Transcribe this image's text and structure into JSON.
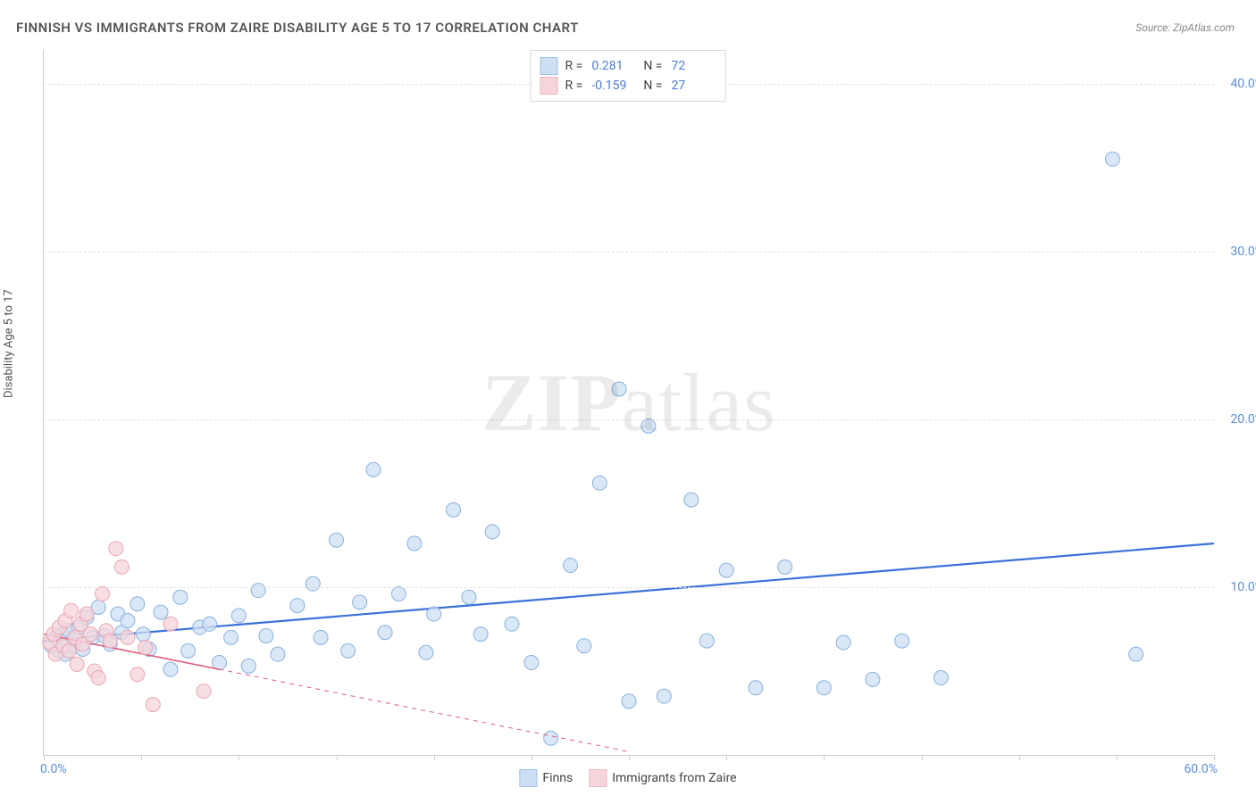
{
  "title": "FINNISH VS IMMIGRANTS FROM ZAIRE DISABILITY AGE 5 TO 17 CORRELATION CHART",
  "source": "Source: ZipAtlas.com",
  "y_axis_label": "Disability Age 5 to 17",
  "watermark_bold": "ZIP",
  "watermark_light": "atlas",
  "chart": {
    "type": "scatter",
    "background_color": "#ffffff",
    "grid_color": "#e0e0e0",
    "xlim": [
      0,
      60
    ],
    "ylim": [
      0,
      42
    ],
    "x_tick_labels": [
      "0.0%",
      "60.0%"
    ],
    "y_ticks": [
      10,
      20,
      30,
      40
    ],
    "y_tick_labels": [
      "10.0%",
      "20.0%",
      "30.0%",
      "40.0%"
    ],
    "x_minor_tick_step": 5,
    "marker_radius": 8,
    "series": [
      {
        "name": "Finns",
        "fill": "#cddff3",
        "stroke": "#8ab1de",
        "fill_opacity": 0.75,
        "trend": {
          "x1": 0,
          "y1": 6.8,
          "x2": 60,
          "y2": 12.6,
          "stroke": "#3a72d8",
          "width": 2.2,
          "solid_until_x": 60
        },
        "points": [
          [
            0.4,
            6.5
          ],
          [
            0.6,
            7.0
          ],
          [
            0.8,
            6.2
          ],
          [
            1.0,
            7.2
          ],
          [
            1.1,
            6.0
          ],
          [
            1.3,
            7.4
          ],
          [
            1.5,
            6.5
          ],
          [
            1.6,
            6.9
          ],
          [
            1.8,
            7.6
          ],
          [
            2.0,
            6.3
          ],
          [
            2.2,
            8.2
          ],
          [
            2.5,
            7.0
          ],
          [
            2.8,
            8.8
          ],
          [
            3.1,
            7.1
          ],
          [
            3.4,
            6.6
          ],
          [
            3.8,
            8.4
          ],
          [
            4.0,
            7.3
          ],
          [
            4.3,
            8.0
          ],
          [
            4.8,
            9.0
          ],
          [
            5.1,
            7.2
          ],
          [
            5.4,
            6.3
          ],
          [
            6.0,
            8.5
          ],
          [
            6.5,
            5.1
          ],
          [
            7.0,
            9.4
          ],
          [
            7.4,
            6.2
          ],
          [
            8.0,
            7.6
          ],
          [
            8.5,
            7.8
          ],
          [
            9.0,
            5.5
          ],
          [
            9.6,
            7.0
          ],
          [
            10.0,
            8.3
          ],
          [
            10.5,
            5.3
          ],
          [
            11.0,
            9.8
          ],
          [
            11.4,
            7.1
          ],
          [
            12.0,
            6.0
          ],
          [
            13.0,
            8.9
          ],
          [
            13.8,
            10.2
          ],
          [
            14.2,
            7.0
          ],
          [
            15.0,
            12.8
          ],
          [
            15.6,
            6.2
          ],
          [
            16.2,
            9.1
          ],
          [
            16.9,
            17.0
          ],
          [
            17.5,
            7.3
          ],
          [
            18.2,
            9.6
          ],
          [
            19.0,
            12.6
          ],
          [
            19.6,
            6.1
          ],
          [
            20.0,
            8.4
          ],
          [
            21.0,
            14.6
          ],
          [
            21.8,
            9.4
          ],
          [
            22.4,
            7.2
          ],
          [
            23.0,
            13.3
          ],
          [
            24.0,
            7.8
          ],
          [
            25.0,
            5.5
          ],
          [
            26.0,
            1.0
          ],
          [
            27.0,
            11.3
          ],
          [
            27.7,
            6.5
          ],
          [
            28.5,
            16.2
          ],
          [
            29.5,
            21.8
          ],
          [
            30.0,
            3.2
          ],
          [
            31.0,
            19.6
          ],
          [
            31.8,
            3.5
          ],
          [
            33.2,
            15.2
          ],
          [
            34.0,
            6.8
          ],
          [
            35.0,
            11.0
          ],
          [
            36.5,
            4.0
          ],
          [
            38.0,
            11.2
          ],
          [
            40.0,
            4.0
          ],
          [
            41.0,
            6.7
          ],
          [
            42.5,
            4.5
          ],
          [
            44.0,
            6.8
          ],
          [
            46.0,
            4.6
          ],
          [
            54.8,
            35.5
          ],
          [
            56.0,
            6.0
          ]
        ]
      },
      {
        "name": "Immigrants from Zaire",
        "fill": "#f6d4db",
        "stroke": "#e8a6b3",
        "fill_opacity": 0.75,
        "trend": {
          "x1": 0,
          "y1": 7.2,
          "x2": 30,
          "y2": 0.2,
          "stroke": "#e3607f",
          "width": 1.6,
          "solid_until_x": 9
        },
        "points": [
          [
            0.3,
            6.7
          ],
          [
            0.5,
            7.2
          ],
          [
            0.6,
            6.0
          ],
          [
            0.8,
            7.6
          ],
          [
            1.0,
            6.5
          ],
          [
            1.1,
            8.0
          ],
          [
            1.3,
            6.2
          ],
          [
            1.4,
            8.6
          ],
          [
            1.6,
            7.0
          ],
          [
            1.7,
            5.4
          ],
          [
            1.9,
            7.8
          ],
          [
            2.0,
            6.6
          ],
          [
            2.2,
            8.4
          ],
          [
            2.4,
            7.2
          ],
          [
            2.6,
            5.0
          ],
          [
            2.8,
            4.6
          ],
          [
            3.0,
            9.6
          ],
          [
            3.2,
            7.4
          ],
          [
            3.4,
            6.8
          ],
          [
            3.7,
            12.3
          ],
          [
            4.0,
            11.2
          ],
          [
            4.3,
            7.0
          ],
          [
            4.8,
            4.8
          ],
          [
            5.2,
            6.4
          ],
          [
            5.6,
            3.0
          ],
          [
            6.5,
            7.8
          ],
          [
            8.2,
            3.8
          ]
        ]
      }
    ],
    "legend_top": [
      {
        "swatch": "blue",
        "r_label": "R =",
        "r_value": "0.281",
        "n_label": "N =",
        "n_value": "72"
      },
      {
        "swatch": "pink",
        "r_label": "R =",
        "r_value": "-0.159",
        "n_label": "N =",
        "n_value": "27"
      }
    ],
    "legend_bottom": [
      {
        "swatch": "blue",
        "label": "Finns"
      },
      {
        "swatch": "pink",
        "label": "Immigrants from Zaire"
      }
    ]
  }
}
